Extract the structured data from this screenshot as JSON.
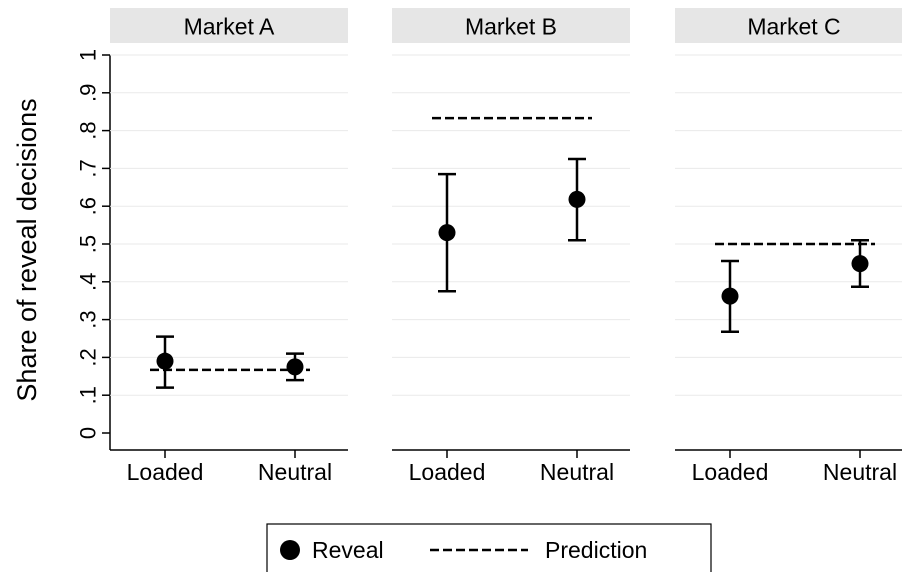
{
  "chart_data": {
    "type": "scatter",
    "ylabel": "Share of reveal decisions",
    "ylim": [
      0,
      1
    ],
    "yticks": [
      0,
      0.1,
      0.2,
      0.3,
      0.4,
      0.5,
      0.6,
      0.7,
      0.8,
      0.9,
      1
    ],
    "ytick_labels": [
      "0",
      ".1",
      ".2",
      ".3",
      ".4",
      ".5",
      ".6",
      ".7",
      ".8",
      ".9",
      "1"
    ],
    "categories": [
      "Loaded",
      "Neutral"
    ],
    "grid": true,
    "legend_position": "bottom",
    "colors": {
      "strip": "#e6e6e6",
      "grid": "#eaeaea",
      "marker": "#000000"
    },
    "panels": [
      {
        "title": "Market A",
        "prediction": 0.167,
        "points": [
          {
            "category": "Loaded",
            "value": 0.19,
            "ci_low": 0.12,
            "ci_high": 0.255
          },
          {
            "category": "Neutral",
            "value": 0.175,
            "ci_low": 0.14,
            "ci_high": 0.21
          }
        ]
      },
      {
        "title": "Market B",
        "prediction": 0.833,
        "points": [
          {
            "category": "Loaded",
            "value": 0.53,
            "ci_low": 0.375,
            "ci_high": 0.685
          },
          {
            "category": "Neutral",
            "value": 0.618,
            "ci_low": 0.51,
            "ci_high": 0.725
          }
        ]
      },
      {
        "title": "Market C",
        "prediction": 0.5,
        "points": [
          {
            "category": "Loaded",
            "value": 0.362,
            "ci_low": 0.268,
            "ci_high": 0.455
          },
          {
            "category": "Neutral",
            "value": 0.448,
            "ci_low": 0.387,
            "ci_high": 0.51
          }
        ]
      }
    ],
    "legend": [
      {
        "label": "Reveal",
        "marker": "filled-circle"
      },
      {
        "label": "Prediction",
        "marker": "dashed-line"
      }
    ]
  }
}
